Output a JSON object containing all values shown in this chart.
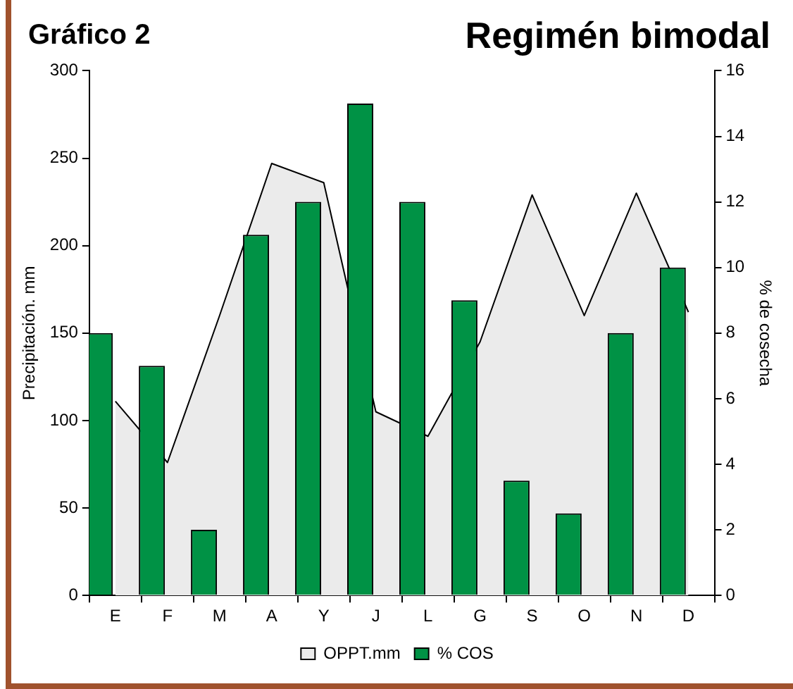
{
  "chart_data": {
    "type": "bar",
    "title": "Gráfico 2",
    "subtitle": "Regimén bimodal",
    "ylabel": "Precipitación. mm",
    "y2label": "% de cosecha",
    "categories": [
      "E",
      "F",
      "M",
      "A",
      "Y",
      "J",
      "L",
      "G",
      "S",
      "O",
      "N",
      "D"
    ],
    "series": [
      {
        "name": "OPPT.mm",
        "type": "area",
        "color": "#ebebeb",
        "values": [
          111,
          76,
          160,
          247,
          236,
          105,
          91,
          145,
          229,
          160,
          230,
          162
        ]
      },
      {
        "name": "% COS",
        "axis": "y2",
        "color": "#009245",
        "values": [
          8,
          7,
          2,
          11,
          12,
          15,
          12,
          9,
          3.5,
          2.5,
          8,
          10
        ]
      }
    ],
    "ylim": [
      0,
      300
    ],
    "yticks": [
      0,
      50,
      100,
      150,
      200,
      250,
      300
    ],
    "y2lim": [
      0,
      16
    ],
    "y2ticks": [
      0,
      2,
      4,
      6,
      8,
      10,
      12,
      14,
      16
    ],
    "grid": false,
    "legend": "bottom"
  }
}
